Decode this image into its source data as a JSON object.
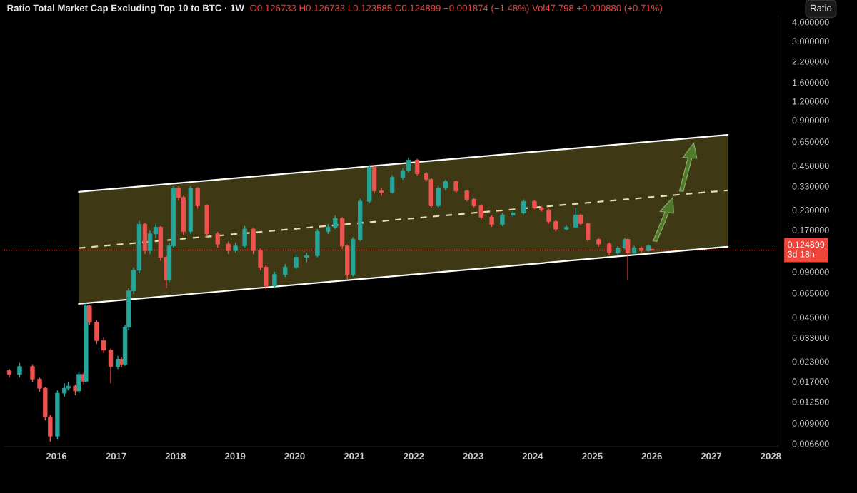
{
  "chart_data": {
    "type": "candlestick",
    "title": "Ratio Total Market Cap Excluding Top 10 to BTC · 1W",
    "subtitle": "O0.126733 H0.126733 L0.123585 C0.124899 −0.001874 (−1.48%) Vol47.798 +0.000880 (+0.71%)",
    "annotations": [
      "Ratio"
    ],
    "x": [
      "2015-03-18",
      "2015-05-20",
      "2015-08-07",
      "2015-09-20",
      "2015-10-24",
      "2015-11-24",
      "2016-01-07",
      "2016-02-19",
      "2016-03-13",
      "2016-04-26",
      "2016-05-18",
      "2016-06-17",
      "2016-06-30",
      "2016-07-22",
      "2016-09-04",
      "2016-10-17",
      "2016-11-29",
      "2017-01-12",
      "2017-02-03",
      "2017-02-25",
      "2017-03-19",
      "2017-04-19",
      "2017-05-23",
      "2017-06-27",
      "2017-07-28",
      "2017-09-01",
      "2017-10-01",
      "2017-11-05",
      "2017-11-23",
      "2017-12-19",
      "2018-01-19",
      "2018-02-18",
      "2018-04-03",
      "2018-05-16",
      "2018-07-12",
      "2018-09-16",
      "2018-11-20",
      "2019-01-03",
      "2019-03-01",
      "2019-04-22",
      "2019-06-05",
      "2019-07-09",
      "2019-08-31",
      "2019-11-04",
      "2020-01-10",
      "2020-03-15",
      "2020-05-20",
      "2020-07-24",
      "2020-09-06",
      "2020-10-19",
      "2020-11-19",
      "2020-12-24",
      "2021-02-06",
      "2021-04-04",
      "2021-05-04",
      "2021-06-17",
      "2021-08-22",
      "2021-10-26",
      "2021-11-30",
      "2022-01-22",
      "2022-03-19",
      "2022-04-18",
      "2022-06-01",
      "2022-07-15",
      "2022-09-18",
      "2022-11-23",
      "2023-01-06",
      "2023-02-19",
      "2023-04-25",
      "2023-06-29",
      "2023-09-02",
      "2023-11-07",
      "2024-01-12",
      "2024-02-25",
      "2024-04-09",
      "2024-05-22",
      "2024-07-27",
      "2024-09-22",
      "2024-10-22",
      "2024-12-05",
      "2025-02-09",
      "2025-04-15",
      "2025-06-07",
      "2025-07-20",
      "2025-08-07",
      "2025-09-15",
      "2025-10-29",
      "2025-12-12",
      "2026-01-02"
    ],
    "ohlc": [
      [
        0.02,
        0.0205,
        0.018,
        0.0189
      ],
      [
        0.0189,
        0.0225,
        0.018,
        0.0213
      ],
      [
        0.0213,
        0.022,
        0.0168,
        0.0176
      ],
      [
        0.0176,
        0.018,
        0.0145,
        0.0153
      ],
      [
        0.0153,
        0.0156,
        0.0094,
        0.0099
      ],
      [
        0.0099,
        0.0102,
        0.0068,
        0.0074
      ],
      [
        0.0074,
        0.0148,
        0.007,
        0.0142
      ],
      [
        0.0142,
        0.0165,
        0.0135,
        0.0153
      ],
      [
        0.0153,
        0.0168,
        0.0148,
        0.0158
      ],
      [
        0.0158,
        0.0162,
        0.0138,
        0.0147
      ],
      [
        0.0147,
        0.0198,
        0.0142,
        0.0189
      ],
      [
        0.0189,
        0.0195,
        0.0162,
        0.017
      ],
      [
        0.017,
        0.056,
        0.0168,
        0.0535
      ],
      [
        0.0535,
        0.0545,
        0.04,
        0.0417
      ],
      [
        0.0417,
        0.043,
        0.03,
        0.0316
      ],
      [
        0.0316,
        0.033,
        0.026,
        0.0273
      ],
      [
        0.0273,
        0.028,
        0.0165,
        0.0213
      ],
      [
        0.0213,
        0.025,
        0.0205,
        0.0238
      ],
      [
        0.0238,
        0.0245,
        0.021,
        0.0221
      ],
      [
        0.0221,
        0.04,
        0.0215,
        0.0387
      ],
      [
        0.0387,
        0.07,
        0.037,
        0.0672
      ],
      [
        0.0672,
        0.096,
        0.064,
        0.092
      ],
      [
        0.092,
        0.195,
        0.088,
        0.185
      ],
      [
        0.185,
        0.19,
        0.118,
        0.124
      ],
      [
        0.124,
        0.168,
        0.118,
        0.16
      ],
      [
        0.16,
        0.185,
        0.15,
        0.177
      ],
      [
        0.177,
        0.18,
        0.106,
        0.112
      ],
      [
        0.112,
        0.115,
        0.07,
        0.0798
      ],
      [
        0.0798,
        0.14,
        0.077,
        0.133
      ],
      [
        0.133,
        0.33,
        0.13,
        0.32
      ],
      [
        0.32,
        0.33,
        0.265,
        0.278
      ],
      [
        0.278,
        0.285,
        0.158,
        0.166
      ],
      [
        0.166,
        0.33,
        0.16,
        0.32
      ],
      [
        0.32,
        0.325,
        0.235,
        0.245
      ],
      [
        0.245,
        0.25,
        0.152,
        0.16
      ],
      [
        0.16,
        0.165,
        0.13,
        0.137
      ],
      [
        0.137,
        0.142,
        0.118,
        0.124
      ],
      [
        0.124,
        0.14,
        0.12,
        0.133
      ],
      [
        0.133,
        0.18,
        0.13,
        0.172
      ],
      [
        0.172,
        0.175,
        0.118,
        0.124
      ],
      [
        0.124,
        0.128,
        0.092,
        0.0965
      ],
      [
        0.0965,
        0.099,
        0.069,
        0.0725
      ],
      [
        0.0725,
        0.09,
        0.07,
        0.0863
      ],
      [
        0.0863,
        0.101,
        0.083,
        0.0965
      ],
      [
        0.0965,
        0.117,
        0.094,
        0.112
      ],
      [
        0.112,
        0.12,
        0.104,
        0.115
      ],
      [
        0.115,
        0.172,
        0.112,
        0.166
      ],
      [
        0.166,
        0.185,
        0.16,
        0.177
      ],
      [
        0.177,
        0.212,
        0.172,
        0.202
      ],
      [
        0.202,
        0.206,
        0.127,
        0.133
      ],
      [
        0.133,
        0.136,
        0.0798,
        0.0863
      ],
      [
        0.0863,
        0.152,
        0.084,
        0.147
      ],
      [
        0.147,
        0.272,
        0.143,
        0.262
      ],
      [
        0.262,
        0.455,
        0.255,
        0.441
      ],
      [
        0.441,
        0.45,
        0.295,
        0.307
      ],
      [
        0.307,
        0.32,
        0.285,
        0.3
      ],
      [
        0.3,
        0.39,
        0.295,
        0.377
      ],
      [
        0.377,
        0.43,
        0.365,
        0.417
      ],
      [
        0.417,
        0.51,
        0.405,
        0.491
      ],
      [
        0.491,
        0.5,
        0.385,
        0.399
      ],
      [
        0.399,
        0.41,
        0.355,
        0.366
      ],
      [
        0.366,
        0.372,
        0.238,
        0.245
      ],
      [
        0.245,
        0.33,
        0.238,
        0.32
      ],
      [
        0.32,
        0.365,
        0.31,
        0.355
      ],
      [
        0.355,
        0.36,
        0.298,
        0.307
      ],
      [
        0.307,
        0.312,
        0.262,
        0.27
      ],
      [
        0.27,
        0.276,
        0.238,
        0.245
      ],
      [
        0.245,
        0.25,
        0.2,
        0.206
      ],
      [
        0.206,
        0.212,
        0.178,
        0.185
      ],
      [
        0.185,
        0.22,
        0.18,
        0.213
      ],
      [
        0.213,
        0.226,
        0.207,
        0.22
      ],
      [
        0.22,
        0.27,
        0.215,
        0.262
      ],
      [
        0.262,
        0.268,
        0.232,
        0.238
      ],
      [
        0.238,
        0.244,
        0.224,
        0.23
      ],
      [
        0.23,
        0.234,
        0.187,
        0.193
      ],
      [
        0.193,
        0.197,
        0.166,
        0.172
      ],
      [
        0.172,
        0.182,
        0.168,
        0.177
      ],
      [
        0.177,
        0.238,
        0.174,
        0.213
      ],
      [
        0.213,
        0.218,
        0.182,
        0.187
      ],
      [
        0.187,
        0.19,
        0.142,
        0.147
      ],
      [
        0.147,
        0.15,
        0.132,
        0.137
      ],
      [
        0.137,
        0.14,
        0.116,
        0.12
      ],
      [
        0.12,
        0.133,
        0.117,
        0.129
      ],
      [
        0.129,
        0.151,
        0.126,
        0.147
      ],
      [
        0.147,
        0.15,
        0.0798,
        0.12
      ],
      [
        0.12,
        0.133,
        0.117,
        0.129
      ],
      [
        0.129,
        0.132,
        0.12,
        0.124
      ],
      [
        0.124,
        0.136,
        0.122,
        0.133
      ],
      [
        0.126733,
        0.126733,
        0.123585,
        0.124899
      ]
    ],
    "series": [
      {
        "type": "line",
        "x": [
          "2016-05-18",
          "2027-04-12"
        ],
        "values": [
          0.303,
          0.72
        ],
        "color": "#ffffff",
        "line_style": "solid"
      },
      {
        "type": "line",
        "x": [
          "2016-05-18",
          "2027-04-12"
        ],
        "values": [
          0.129,
          0.31
        ],
        "lower": [
          0.0552,
          0.1315
        ],
        "upper": [
          0.303,
          0.72
        ],
        "color": "#e8dfb0",
        "line_style": "dashed"
      },
      {
        "type": "line",
        "x": [
          "2016-05-18",
          "2027-04-12"
        ],
        "values": [
          0.0552,
          0.1315
        ],
        "color": "#ffffff",
        "line_style": "solid"
      }
    ],
    "ref_lines": [
      {
        "axis": "y",
        "value": 0.124899,
        "label": "0.124899\n3d 18h",
        "color": "#f0453a",
        "line_style": "dotted"
      }
    ],
    "log": true,
    "ylim": [
      0.0063,
      4.4
    ],
    "yticks": [
      {
        "value": 0.0066,
        "label": "0.006600"
      },
      {
        "value": 0.009,
        "label": "0.009000"
      },
      {
        "value": 0.0125,
        "label": "0.012500"
      },
      {
        "value": 0.017,
        "label": "0.017000"
      },
      {
        "value": 0.023,
        "label": "0.023000"
      },
      {
        "value": 0.033,
        "label": "0.033000"
      },
      {
        "value": 0.045,
        "label": "0.045000"
      },
      {
        "value": 0.065,
        "label": "0.065000"
      },
      {
        "value": 0.09,
        "label": "0.090000"
      },
      {
        "value": 0.17,
        "label": "0.170000"
      },
      {
        "value": 0.23,
        "label": "0.230000"
      },
      {
        "value": 0.33,
        "label": "0.330000"
      },
      {
        "value": 0.45,
        "label": "0.450000"
      },
      {
        "value": 0.65,
        "label": "0.650000"
      },
      {
        "value": 0.9,
        "label": "0.900000"
      },
      {
        "value": 1.2,
        "label": "1.200000"
      },
      {
        "value": 1.6,
        "label": "1.600000"
      },
      {
        "value": 2.2,
        "label": "2.200000"
      },
      {
        "value": 3,
        "label": "3.000000"
      },
      {
        "value": 4,
        "label": "4.000000"
      }
    ],
    "xlim": [
      "2015-02-15",
      "2028-02-15"
    ],
    "xticks": [
      "2016",
      "2017",
      "2018",
      "2019",
      "2020",
      "2021",
      "2022",
      "2023",
      "2024",
      "2025",
      "2026",
      "2027",
      "2028"
    ],
    "grid": false,
    "legend": false
  }
}
